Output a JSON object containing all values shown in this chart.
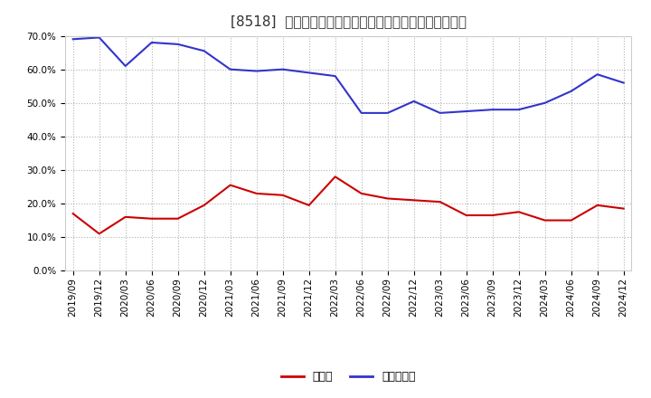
{
  "title": "[8518]  現預金、有利子負債の総資産に対する比率の推移",
  "x_labels": [
    "2019/09",
    "2019/12",
    "2020/03",
    "2020/06",
    "2020/09",
    "2020/12",
    "2021/03",
    "2021/06",
    "2021/09",
    "2021/12",
    "2022/03",
    "2022/06",
    "2022/09",
    "2022/12",
    "2023/03",
    "2023/06",
    "2023/09",
    "2023/12",
    "2024/03",
    "2024/06",
    "2024/09",
    "2024/12"
  ],
  "genkin": [
    17.0,
    11.0,
    16.0,
    15.5,
    15.5,
    19.5,
    25.5,
    23.0,
    22.5,
    19.5,
    28.0,
    23.0,
    21.5,
    21.0,
    20.5,
    16.5,
    16.5,
    17.5,
    15.0,
    15.0,
    19.5,
    18.5
  ],
  "yushi": [
    69.0,
    69.5,
    61.0,
    68.0,
    67.5,
    65.5,
    60.0,
    59.5,
    60.0,
    59.0,
    58.0,
    47.0,
    47.0,
    50.5,
    47.0,
    47.5,
    48.0,
    48.0,
    50.0,
    53.5,
    58.5,
    56.0
  ],
  "ylim": [
    0,
    70
  ],
  "yticks": [
    0,
    10,
    20,
    30,
    40,
    50,
    60,
    70
  ],
  "legend_genkin": "現預金",
  "legend_yushi": "有利子負債",
  "color_genkin": "#cc0000",
  "color_yushi": "#3333cc",
  "bg_color": "#ffffff",
  "plot_bg_color": "#ffffff",
  "grid_color": "#aaaaaa",
  "title_fontsize": 11,
  "tick_fontsize": 7.5,
  "legend_fontsize": 9
}
